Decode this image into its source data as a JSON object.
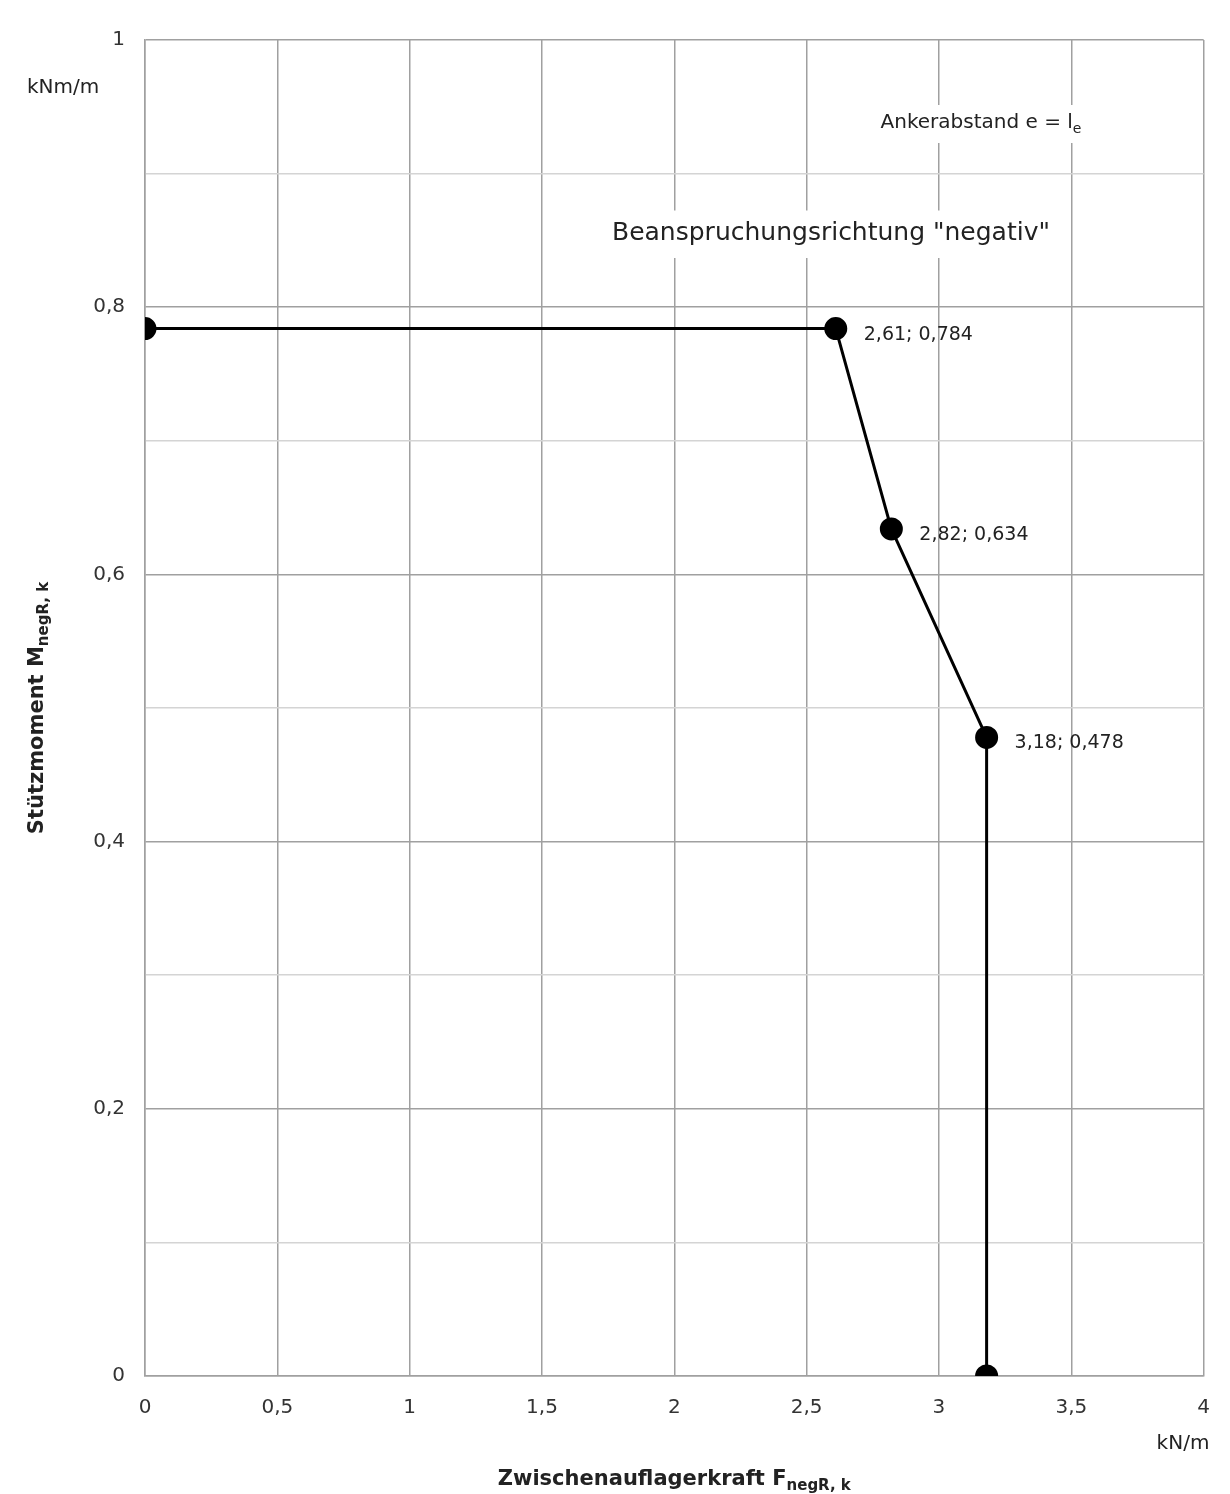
{
  "chart_data": {
    "type": "line",
    "xlabel": "Zwischenauflagerkraft F$_{negR, k}$",
    "ylabel": "Stützmoment M$_{negR, k}$",
    "annotations": [
      "kNm/m",
      "kN/m",
      "Ankerabstand e = l$_{e}$",
      "Beanspruchungsrichtung \"negativ\""
    ],
    "x": [
      0,
      2.61,
      2.82,
      3.18,
      3.18
    ],
    "series": [
      {
        "color": "#000000",
        "values": [
          0.784,
          0.784,
          0.634,
          0.478,
          0
        ],
        "value_labels": [
          null,
          "2,61; 0,784",
          "2,82; 0,634",
          "3,18; 0,478",
          null
        ]
      }
    ],
    "xlim": [
      0,
      4
    ],
    "ylim": [
      0,
      1
    ],
    "xticks": [
      0,
      {
        "value": 0.5,
        "label": "0,5"
      },
      1,
      {
        "value": 1.5,
        "label": "1,5"
      },
      2,
      {
        "value": 2.5,
        "label": "2,5"
      },
      3,
      {
        "value": 3.5,
        "label": "3,5"
      },
      4
    ],
    "yticks": [
      0,
      {
        "value": 0.1,
        "label": null
      },
      {
        "value": 0.2,
        "label": "0,2"
      },
      {
        "value": 0.3,
        "label": null
      },
      {
        "value": 0.4,
        "label": "0,4"
      },
      {
        "value": 0.5,
        "label": null
      },
      {
        "value": 0.6,
        "label": "0,6"
      },
      {
        "value": 0.7,
        "label": null
      },
      {
        "value": 0.8,
        "label": "0,8"
      },
      {
        "value": 0.9,
        "label": null
      },
      1
    ],
    "grid": true,
    "legend": false,
    "marker": "circle",
    "line_style": "solid"
  }
}
